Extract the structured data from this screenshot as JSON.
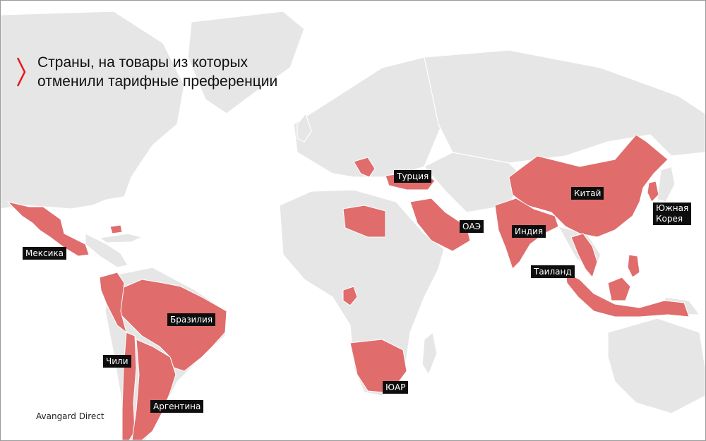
{
  "title": {
    "line1": "Страны, на товары из которых",
    "line2": "отменили тарифные преференции"
  },
  "colors": {
    "highlight": "#e06c6c",
    "land": "#e6e6e6",
    "accent_mark": "#e8141b",
    "label_bg": "#0e0e0e"
  },
  "labels": {
    "mexico": "Мексика",
    "brazil": "Бразилия",
    "chile": "Чили",
    "argentina": "Аргентина",
    "turkey": "Турция",
    "uae": "ОАЭ",
    "india": "Индия",
    "china": "Китай",
    "thailand": "Таиланд",
    "south_korea_line1": "Южная",
    "south_korea_line2": "Корея",
    "south_africa": "ЮАР"
  },
  "credit": "Avangard Direct"
}
